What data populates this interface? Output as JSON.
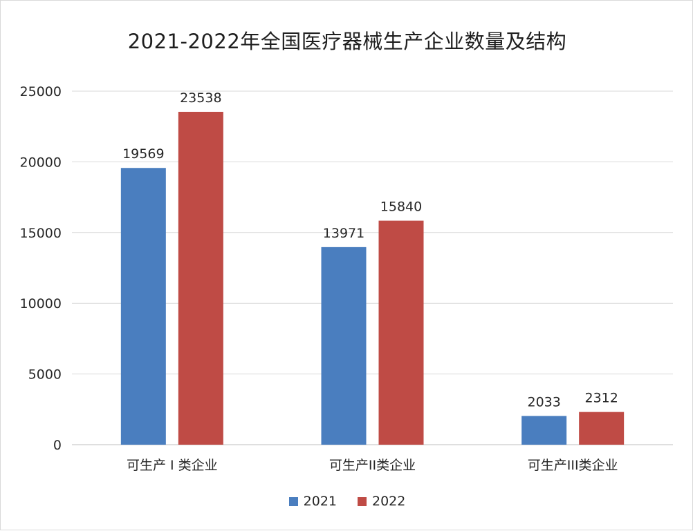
{
  "chart_data": {
    "type": "bar",
    "title": "2021-2022年全国医疗器械生产企业数量及结构",
    "categories": [
      "可生产 I 类企业",
      "可生产II类企业",
      "可生产III类企业"
    ],
    "series": [
      {
        "name": "2021",
        "color": "#4a7ebf",
        "values": [
          19569,
          13971,
          2033
        ]
      },
      {
        "name": "2022",
        "color": "#bf4b45",
        "values": [
          23538,
          15840,
          2312
        ]
      }
    ],
    "ylim": [
      0,
      25000
    ],
    "yticks": [
      0,
      5000,
      10000,
      15000,
      20000,
      25000
    ],
    "grid": true,
    "legend": "bottom-center",
    "data_labels": true
  }
}
